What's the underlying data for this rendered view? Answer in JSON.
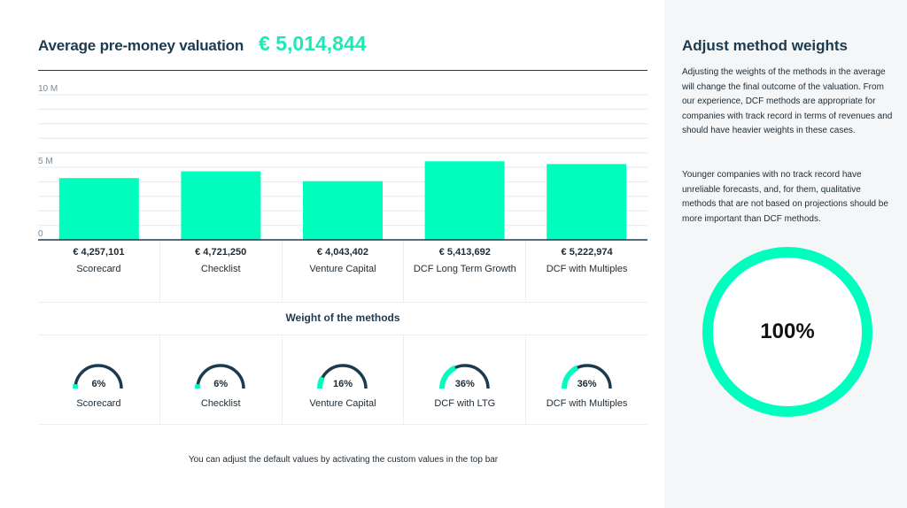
{
  "header": {
    "title": "Average pre-money valuation",
    "value": "€ 5,014,844"
  },
  "colors": {
    "accent": "#00ffbf",
    "accent_text": "#1de9b6",
    "navy": "#1d3a4f",
    "panel_bg": "#f4f6f7"
  },
  "chart_data": {
    "type": "bar",
    "categories": [
      "Scorecard",
      "Checklist",
      "Venture Capital",
      "DCF Long Term Growth",
      "DCF with Multiples"
    ],
    "values": [
      4257101,
      4721250,
      4043402,
      5413692,
      5222974
    ],
    "ylim": [
      0,
      10000000
    ],
    "y_tick_labels": [
      {
        "value": 0,
        "label": "0"
      },
      {
        "value": 5000000,
        "label": "5 M"
      },
      {
        "value": 10000000,
        "label": "10 M"
      }
    ],
    "grid": true,
    "bar_color": "#00ffbf"
  },
  "valuations": [
    {
      "amount": "€ 4,257,101",
      "name": "Scorecard"
    },
    {
      "amount": "€ 4,721,250",
      "name": "Checklist"
    },
    {
      "amount": "€ 4,043,402",
      "name": "Venture Capital"
    },
    {
      "amount": "€ 5,413,692",
      "name": "DCF Long Term Growth"
    },
    {
      "amount": "€ 5,222,974",
      "name": "DCF with Multiples"
    }
  ],
  "weights_title": "Weight of the methods",
  "weights": [
    {
      "name": "Scorecard",
      "percent_label": "6%",
      "fraction": 0.06
    },
    {
      "name": "Checklist",
      "percent_label": "6%",
      "fraction": 0.06
    },
    {
      "name": "Venture Capital",
      "percent_label": "16%",
      "fraction": 0.16
    },
    {
      "name": "DCF with LTG",
      "percent_label": "36%",
      "fraction": 0.36
    },
    {
      "name": "DCF with Multiples",
      "percent_label": "36%",
      "fraction": 0.36
    }
  ],
  "footer_note": "You can adjust the default values by activating the custom values in the top bar",
  "side": {
    "title": "Adjust  method weights",
    "paragraph1": "Adjusting the weights of the methods in the average will change the final outcome of the valuation. From our experience, DCF methods are appropriate for companies with track record in terms of revenues and should have heavier weights in these cases.",
    "paragraph2": "Younger companies with no track record have unreliable forecasts, and, for them, qualitative methods that are not based on projections should be more important than DCF methods.",
    "total_label": "100%",
    "total_fraction": 1.0
  }
}
